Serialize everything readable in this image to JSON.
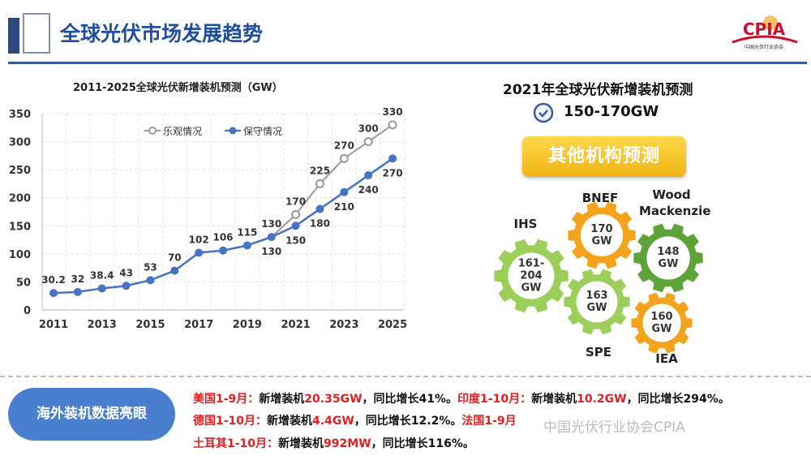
{
  "header": {
    "title": "全球光伏市场发展趋势",
    "logo_text": "CPIA",
    "logo_subtitle": "中国光伏行业协会"
  },
  "chart_data": {
    "type": "line",
    "title": "2011-2025全球光伏新增装机预测（GW）",
    "xlabel": "",
    "ylabel": "",
    "ylim": [
      0,
      350
    ],
    "yticks": [
      0,
      50,
      100,
      150,
      200,
      250,
      300,
      350
    ],
    "xticks": [
      2011,
      2013,
      2015,
      2017,
      2019,
      2021,
      2023,
      2025
    ],
    "grid": true,
    "legend_position": "top",
    "x": [
      2011,
      2012,
      2013,
      2014,
      2015,
      2016,
      2017,
      2018,
      2019,
      2020,
      2021,
      2022,
      2023,
      2024,
      2025
    ],
    "series": [
      {
        "name": "乐观情况",
        "color": "#9a9a9a",
        "marker": "open-circle",
        "x": [
          2020,
          2021,
          2022,
          2023,
          2024,
          2025
        ],
        "values": [
          130,
          170,
          225,
          270,
          300,
          330
        ]
      },
      {
        "name": "保守情况",
        "color": "#4472c4",
        "marker": "filled-circle",
        "values": [
          30.2,
          32,
          38.4,
          43,
          53,
          70,
          102,
          106,
          115,
          130,
          150,
          180,
          210,
          240,
          270
        ]
      }
    ],
    "labels": [
      "30.2",
      "32",
      "38.4",
      "43",
      "53",
      "70",
      "102",
      "106",
      "115",
      "130",
      "150",
      "180",
      "210",
      "240",
      "270"
    ],
    "opt_labels": [
      "130",
      "170",
      "225",
      "270",
      "300",
      "330"
    ]
  },
  "right": {
    "title": "2021年全球光伏新增装机预测",
    "range": "150-170GW",
    "button": "其他机构预测",
    "gears": [
      {
        "name": "IHS",
        "value": "161-204 GW",
        "color": "#9ccf5a"
      },
      {
        "name": "BNEF",
        "value": "170 GW",
        "color": "#f4a41c"
      },
      {
        "name": "Wood Mackenzie",
        "value": "148 GW",
        "color": "#5da33a"
      },
      {
        "name": "SPE",
        "value": "163 GW",
        "color": "#9ccf5a"
      },
      {
        "name": "IEA",
        "value": "160 GW",
        "color": "#f4a41c"
      }
    ]
  },
  "overseas": {
    "label": "海外装机数据亮眼",
    "lines": [
      [
        {
          "t": "美国1-9月：",
          "red": true
        },
        {
          "t": "新增装机"
        },
        {
          "t": "20.35GW",
          "red": true
        },
        {
          "t": "，同比增长41%。"
        },
        {
          "t": "印度1-10月：",
          "red": true
        },
        {
          "t": "新增装机"
        },
        {
          "t": "10.2GW",
          "red": true
        },
        {
          "t": "，同比增长294%。"
        }
      ],
      [
        {
          "t": "德国1-10月：",
          "red": true
        },
        {
          "t": "新增装机"
        },
        {
          "t": "4.4GW",
          "red": true
        },
        {
          "t": "，同比增长12.2%。"
        },
        {
          "t": "法国1-9月",
          "red": true
        }
      ],
      [
        {
          "t": "土耳其1-10月：",
          "red": true
        },
        {
          "t": "新增装机"
        },
        {
          "t": "992MW",
          "red": true
        },
        {
          "t": "，同比增长116%。"
        }
      ]
    ]
  },
  "watermark": "中国光伏行业协会CPIA"
}
